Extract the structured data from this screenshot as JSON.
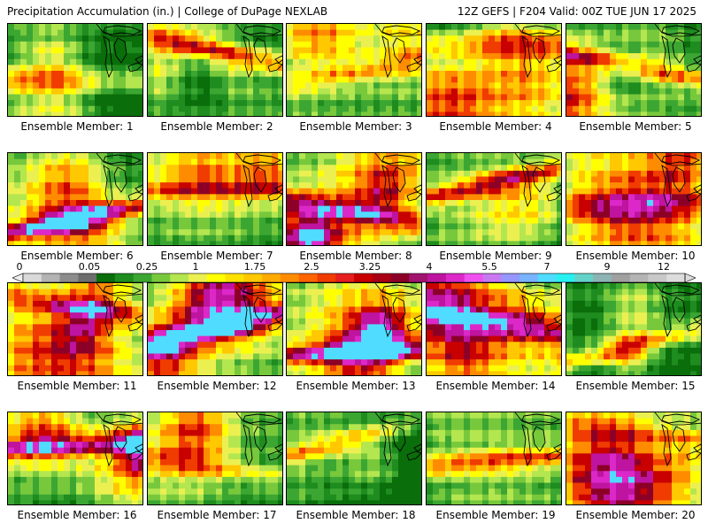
{
  "header": {
    "left_title": "Precipitation Accumulation (in.) | College of DuPage NEXLAB",
    "right_title": "12Z GEFS | F204 Valid: 00Z TUE JUN 17 2025"
  },
  "colorbar": {
    "labels": [
      "0",
      "0.05",
      "0.25",
      "1",
      "1.75",
      "2.5",
      "3.25",
      "4",
      "5.5",
      "7",
      "9",
      "12"
    ],
    "colors": [
      "#d9d9d9",
      "#b3b3b3",
      "#8c8c8c",
      "#6e6e6e",
      "#0a6e0a",
      "#1e8c1e",
      "#3ca632",
      "#78c83c",
      "#b4e650",
      "#ebf050",
      "#ffff00",
      "#ffe100",
      "#ffc800",
      "#ffaa00",
      "#ff8c00",
      "#ff6400",
      "#f03c00",
      "#e61e1e",
      "#c80000",
      "#aa0014",
      "#8c0028",
      "#a0146e",
      "#be14a0",
      "#dc28c8",
      "#f050f0",
      "#c878f0",
      "#9696ff",
      "#78b4ff",
      "#50dcff",
      "#28f0f0",
      "#64d2c8",
      "#8cb4b4",
      "#a0a0a0",
      "#b4b4b4",
      "#c8c8c8",
      "#dcdcdc"
    ]
  },
  "members": [
    {
      "label": "Ensemble Member: 1"
    },
    {
      "label": "Ensemble Member: 2"
    },
    {
      "label": "Ensemble Member: 3"
    },
    {
      "label": "Ensemble Member: 4"
    },
    {
      "label": "Ensemble Member: 5"
    },
    {
      "label": "Ensemble Member: 6"
    },
    {
      "label": "Ensemble Member: 7"
    },
    {
      "label": "Ensemble Member: 8"
    },
    {
      "label": "Ensemble Member: 9"
    },
    {
      "label": "Ensemble Member: 10"
    },
    {
      "label": "Ensemble Member: 11"
    },
    {
      "label": "Ensemble Member: 12"
    },
    {
      "label": "Ensemble Member: 13"
    },
    {
      "label": "Ensemble Member: 14"
    },
    {
      "label": "Ensemble Member: 15"
    },
    {
      "label": "Ensemble Member: 16"
    },
    {
      "label": "Ensemble Member: 17"
    },
    {
      "label": "Ensemble Member: 18"
    },
    {
      "label": "Ensemble Member: 19"
    },
    {
      "label": "Ensemble Member: 20"
    }
  ]
}
